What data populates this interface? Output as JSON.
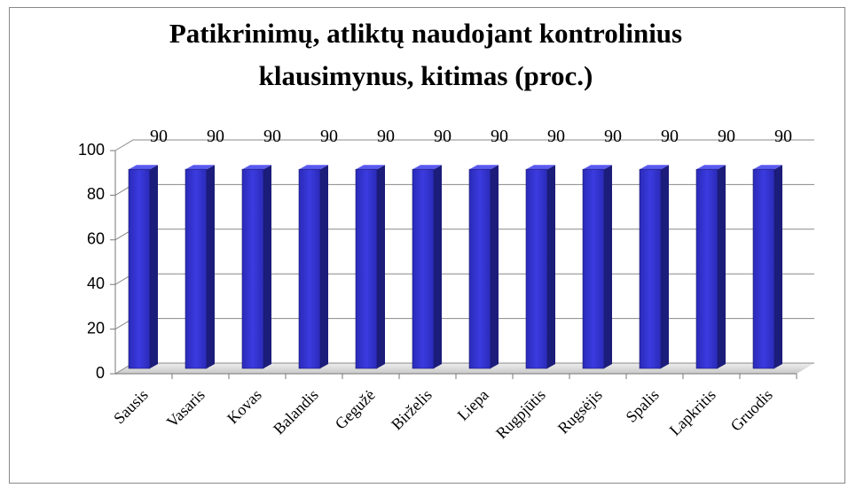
{
  "chart_data": {
    "type": "bar3d",
    "title": "Patikrinimų, atliktų naudojant kontrolinius klausimynus, kitimas (proc.)",
    "categories": [
      "Sausis",
      "Vasaris",
      "Kovas",
      "Balandis",
      "Gegužė",
      "Birželis",
      "Liepa",
      "Rugpjūtis",
      "Rugsėjis",
      "Spalis",
      "Lapkritis",
      "Gruodis"
    ],
    "values": [
      90,
      90,
      90,
      90,
      90,
      90,
      90,
      90,
      90,
      90,
      90,
      90
    ],
    "color": "#3030d0",
    "ylim": [
      0,
      100
    ],
    "yticks": [
      0,
      20,
      40,
      60,
      80,
      100
    ],
    "grid": true
  }
}
